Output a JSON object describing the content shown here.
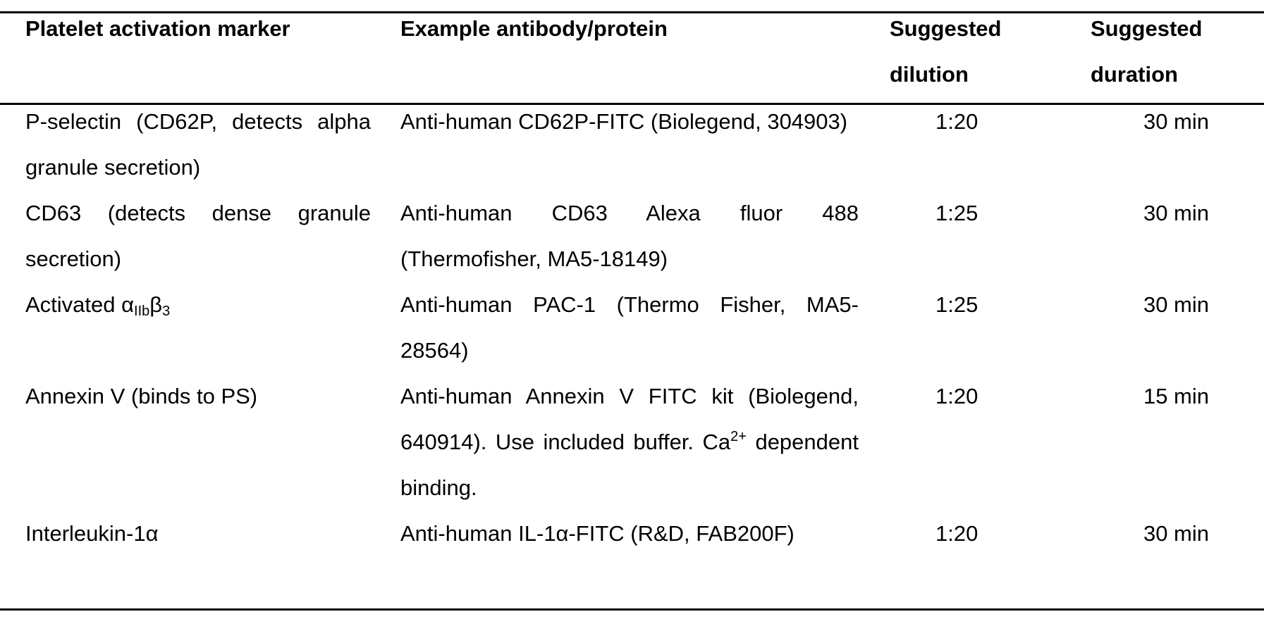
{
  "headers": {
    "marker": "Platelet activation marker",
    "antibody": "Example antibody/protein",
    "dilution": "Suggested dilution",
    "duration": "Suggested duration"
  },
  "rows": [
    {
      "marker": "P-selectin (CD62P, detects alpha granule secretion)",
      "antibody": "Anti-human CD62P-FITC (Biolegend, 304903)",
      "dilution": "1:20",
      "duration": "30 min"
    },
    {
      "marker": "CD63 (detects dense granule secretion)",
      "antibody": "Anti-human CD63 Alexa fluor 488 (Thermofisher, MA5-18149)",
      "dilution": "1:25",
      "duration": "30 min"
    },
    {
      "marker_prefix": "Activated α",
      "marker_sub1": "IIb",
      "marker_mid": "β",
      "marker_sub2": "3",
      "antibody": "Anti-human PAC-1 (Thermo Fisher, MA5-28564)",
      "dilution": "1:25",
      "duration": "30 min"
    },
    {
      "marker": "Annexin V (binds to PS)",
      "antibody_before": "Anti-human Annexin V FITC kit (Biolegend, 640914). Use included buffer. Ca",
      "antibody_sup": "2+",
      "antibody_after": " dependent binding.",
      "dilution": "1:20",
      "duration": "15 min"
    },
    {
      "marker": "Interleukin-1α",
      "antibody": "Anti-human IL-1α-FITC (R&D, FAB200F)",
      "dilution": "1:20",
      "duration": "30 min"
    }
  ]
}
